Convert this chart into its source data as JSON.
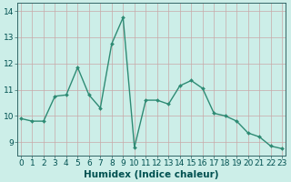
{
  "x": [
    0,
    1,
    2,
    3,
    4,
    5,
    6,
    7,
    8,
    9,
    10,
    11,
    12,
    13,
    14,
    15,
    16,
    17,
    18,
    19,
    20,
    21,
    22,
    23
  ],
  "y": [
    9.9,
    9.8,
    9.8,
    10.75,
    10.8,
    11.85,
    10.8,
    10.3,
    12.75,
    13.75,
    8.8,
    10.6,
    10.6,
    10.45,
    11.15,
    11.35,
    11.05,
    10.1,
    10.0,
    9.8,
    9.35,
    9.2,
    8.85,
    8.75
  ],
  "line_color": "#2e8b74",
  "marker": "D",
  "marker_size": 2.0,
  "line_width": 1.0,
  "bg_color": "#cceee8",
  "grid_color_major": "#c8a8a8",
  "grid_color_minor": "#ddc8c8",
  "xlabel": "Humidex (Indice chaleur)",
  "xlabel_fontsize": 7.5,
  "xlabel_color": "#005050",
  "xtick_labels": [
    "0",
    "1",
    "2",
    "3",
    "4",
    "5",
    "6",
    "7",
    "8",
    "9",
    "10",
    "11",
    "12",
    "13",
    "14",
    "15",
    "16",
    "17",
    "18",
    "19",
    "20",
    "21",
    "22",
    "23"
  ],
  "ytick_labels": [
    "9",
    "10",
    "11",
    "12",
    "13",
    "14"
  ],
  "yticks": [
    9,
    10,
    11,
    12,
    13,
    14
  ],
  "ylim": [
    8.5,
    14.3
  ],
  "xlim": [
    -0.3,
    23.3
  ],
  "tick_fontsize": 6.5
}
